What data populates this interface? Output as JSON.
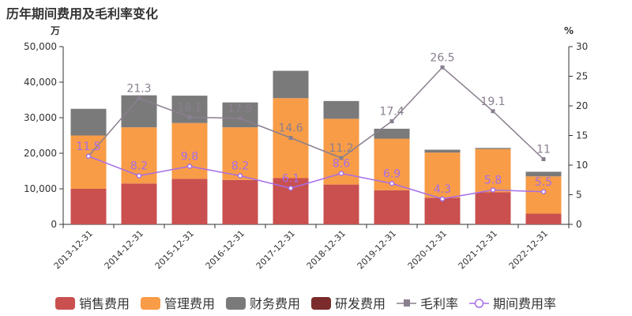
{
  "title": "历年期间费用及毛利率变化",
  "chart_data": {
    "type": "bar",
    "title": "历年期间费用及毛利率变化",
    "left_unit": "万",
    "right_unit": "%",
    "left_ylim": [
      0,
      50000
    ],
    "left_ticks": [
      "0",
      "10,000",
      "20,000",
      "30,000",
      "40,000",
      "50,000"
    ],
    "right_ylim": [
      0,
      30
    ],
    "right_ticks": [
      "0",
      "5",
      "10",
      "15",
      "20",
      "25",
      "30"
    ],
    "categories": [
      "2013-12-31",
      "2014-12-31",
      "2015-12-31",
      "2016-12-31",
      "2017-12-31",
      "2018-12-31",
      "2019-12-31",
      "2020-12-31",
      "2021-12-31",
      "2022-12-31"
    ],
    "series": [
      {
        "name": "销售费用",
        "type": "bar",
        "color": "#c9504f",
        "values": [
          10000,
          11500,
          12800,
          12500,
          13000,
          11200,
          9600,
          7500,
          9000,
          3000
        ]
      },
      {
        "name": "管理费用",
        "type": "bar",
        "color": "#f89c47",
        "values": [
          15000,
          15800,
          15700,
          14800,
          22500,
          18500,
          14500,
          12700,
          12200,
          10500
        ]
      },
      {
        "name": "财务费用",
        "type": "bar",
        "color": "#7a7a7a",
        "values": [
          7500,
          9000,
          7700,
          7000,
          7700,
          5000,
          2800,
          800,
          300,
          1300
        ]
      },
      {
        "name": "研发费用",
        "type": "bar",
        "color": "#7b2b2b",
        "values": [
          0,
          0,
          0,
          0,
          0,
          0,
          0,
          0,
          0,
          0
        ]
      },
      {
        "name": "毛利率",
        "type": "line",
        "axis": "right",
        "color": "#8a7f8f",
        "values": [
          11.5,
          21.3,
          18.1,
          17.9,
          14.6,
          11.2,
          17.4,
          26.5,
          19.1,
          11
        ],
        "labels": [
          "",
          "21.3",
          "18.1",
          "17.9",
          "14.6",
          "11.2",
          "17.4",
          "26.5",
          "19.1",
          "11"
        ]
      },
      {
        "name": "期间费用率",
        "type": "line",
        "axis": "right",
        "color": "#a66ee8",
        "values": [
          11.5,
          8.2,
          9.8,
          8.2,
          6.1,
          8.6,
          6.9,
          4.3,
          5.8,
          5.5
        ],
        "labels": [
          "11.5",
          "8.2",
          "9.8",
          "8.2",
          "6.1",
          "8.6",
          "6.9",
          "4.3",
          "5.8",
          "5.5"
        ]
      }
    ],
    "legend_position": "bottom",
    "grid": false
  }
}
